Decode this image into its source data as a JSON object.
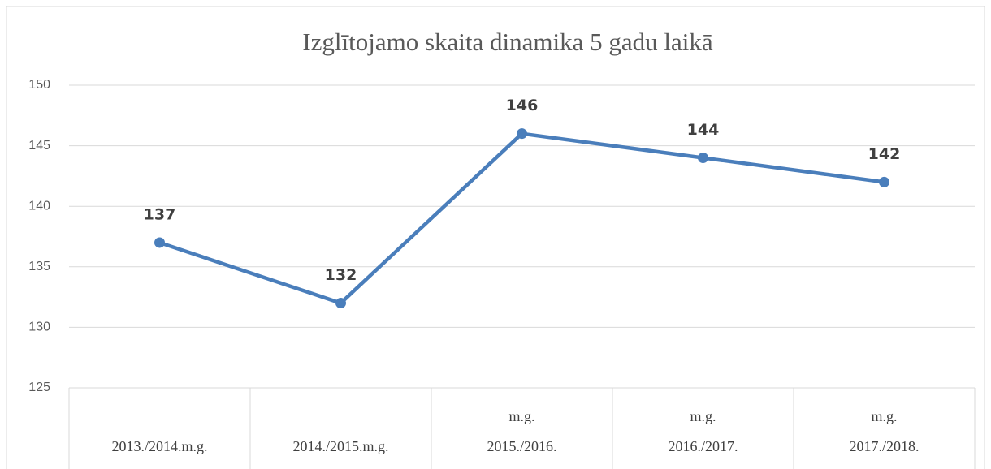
{
  "chart_data": {
    "type": "line",
    "title": "Izglītojamo skaita dinamika 5 gadu laikā",
    "categories": [
      [
        "2013./2014.m.g."
      ],
      [
        "2014./2015.m.g."
      ],
      [
        "m.g.",
        "2015./2016."
      ],
      [
        "m.g.",
        "2016./2017."
      ],
      [
        "m.g.",
        "2017./2018."
      ]
    ],
    "values": [
      137,
      132,
      146,
      144,
      142
    ],
    "color": "#4a7ebb",
    "ylim": [
      125,
      150
    ],
    "yticks": [
      125,
      130,
      135,
      140,
      145,
      150
    ],
    "grid": true
  }
}
